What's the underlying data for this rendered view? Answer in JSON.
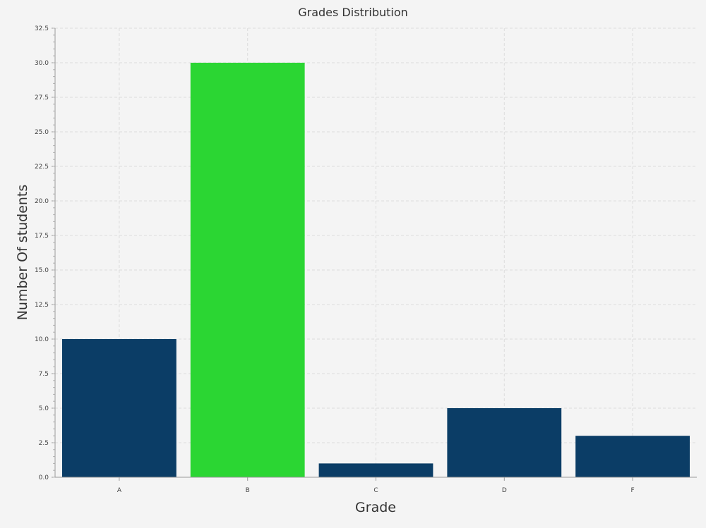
{
  "chart_data": {
    "type": "bar",
    "title": "Grades Distribution",
    "xlabel": "Grade",
    "ylabel": "Number Of students",
    "categories": [
      "A",
      "B",
      "C",
      "D",
      "F"
    ],
    "values": [
      10,
      30,
      1,
      5,
      3
    ],
    "bar_colors": [
      "#0b3d66",
      "#2bd633",
      "#0b3d66",
      "#0b3d66",
      "#0b3d66"
    ],
    "ylim": [
      0,
      32.5
    ],
    "y_ticks": [
      "0.0",
      "2.5",
      "5.0",
      "7.5",
      "10.0",
      "12.5",
      "15.0",
      "17.5",
      "20.0",
      "22.5",
      "25.0",
      "27.5",
      "30.0",
      "32.5"
    ],
    "grid": true,
    "legend": "none"
  }
}
